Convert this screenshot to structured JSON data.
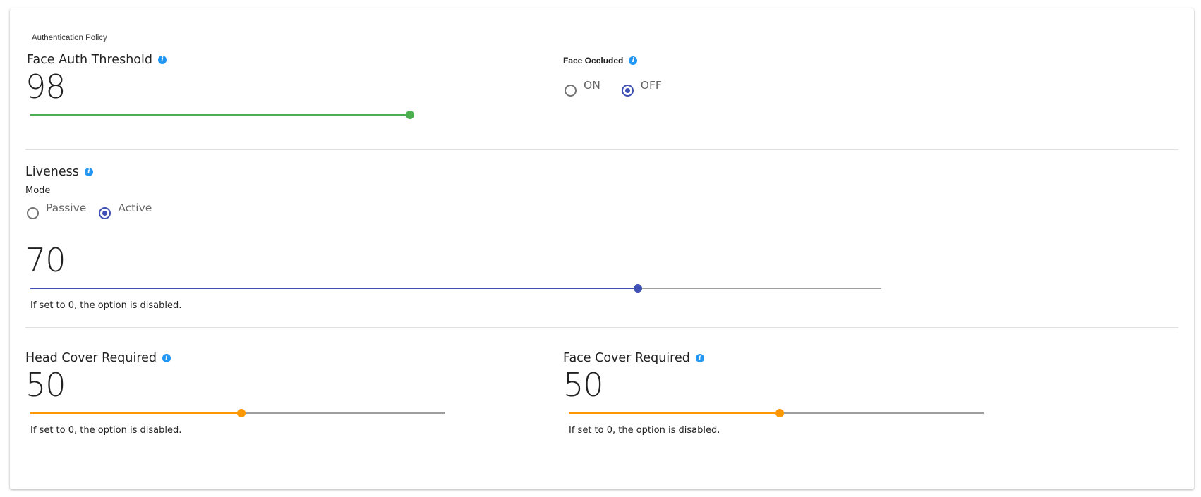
{
  "policy": {
    "title": "Authentication Policy"
  },
  "face_auth": {
    "label": "Face Auth Threshold",
    "value": "98",
    "slider_fraction": 1.0,
    "color": "#4caf50"
  },
  "face_occluded": {
    "label": "Face Occluded",
    "options": [
      "ON",
      "OFF"
    ],
    "selected": "OFF"
  },
  "liveness": {
    "label": "Liveness",
    "mode_label": "Mode",
    "modes": [
      "Passive",
      "Active"
    ],
    "selected_mode": "Active",
    "value": "70",
    "slider_fraction": 0.714,
    "color": "#3f51b5",
    "hint": "If set to 0, the option is disabled."
  },
  "head_cover": {
    "label": "Head Cover Required",
    "value": "50",
    "slider_fraction": 0.509,
    "color": "#ff9800",
    "hint": "If set to 0, the option is disabled."
  },
  "face_cover": {
    "label": "Face Cover Required",
    "value": "50",
    "slider_fraction": 0.509,
    "color": "#ff9800",
    "hint": "If set to 0, the option is disabled."
  },
  "icons": {
    "info": "info-icon"
  }
}
